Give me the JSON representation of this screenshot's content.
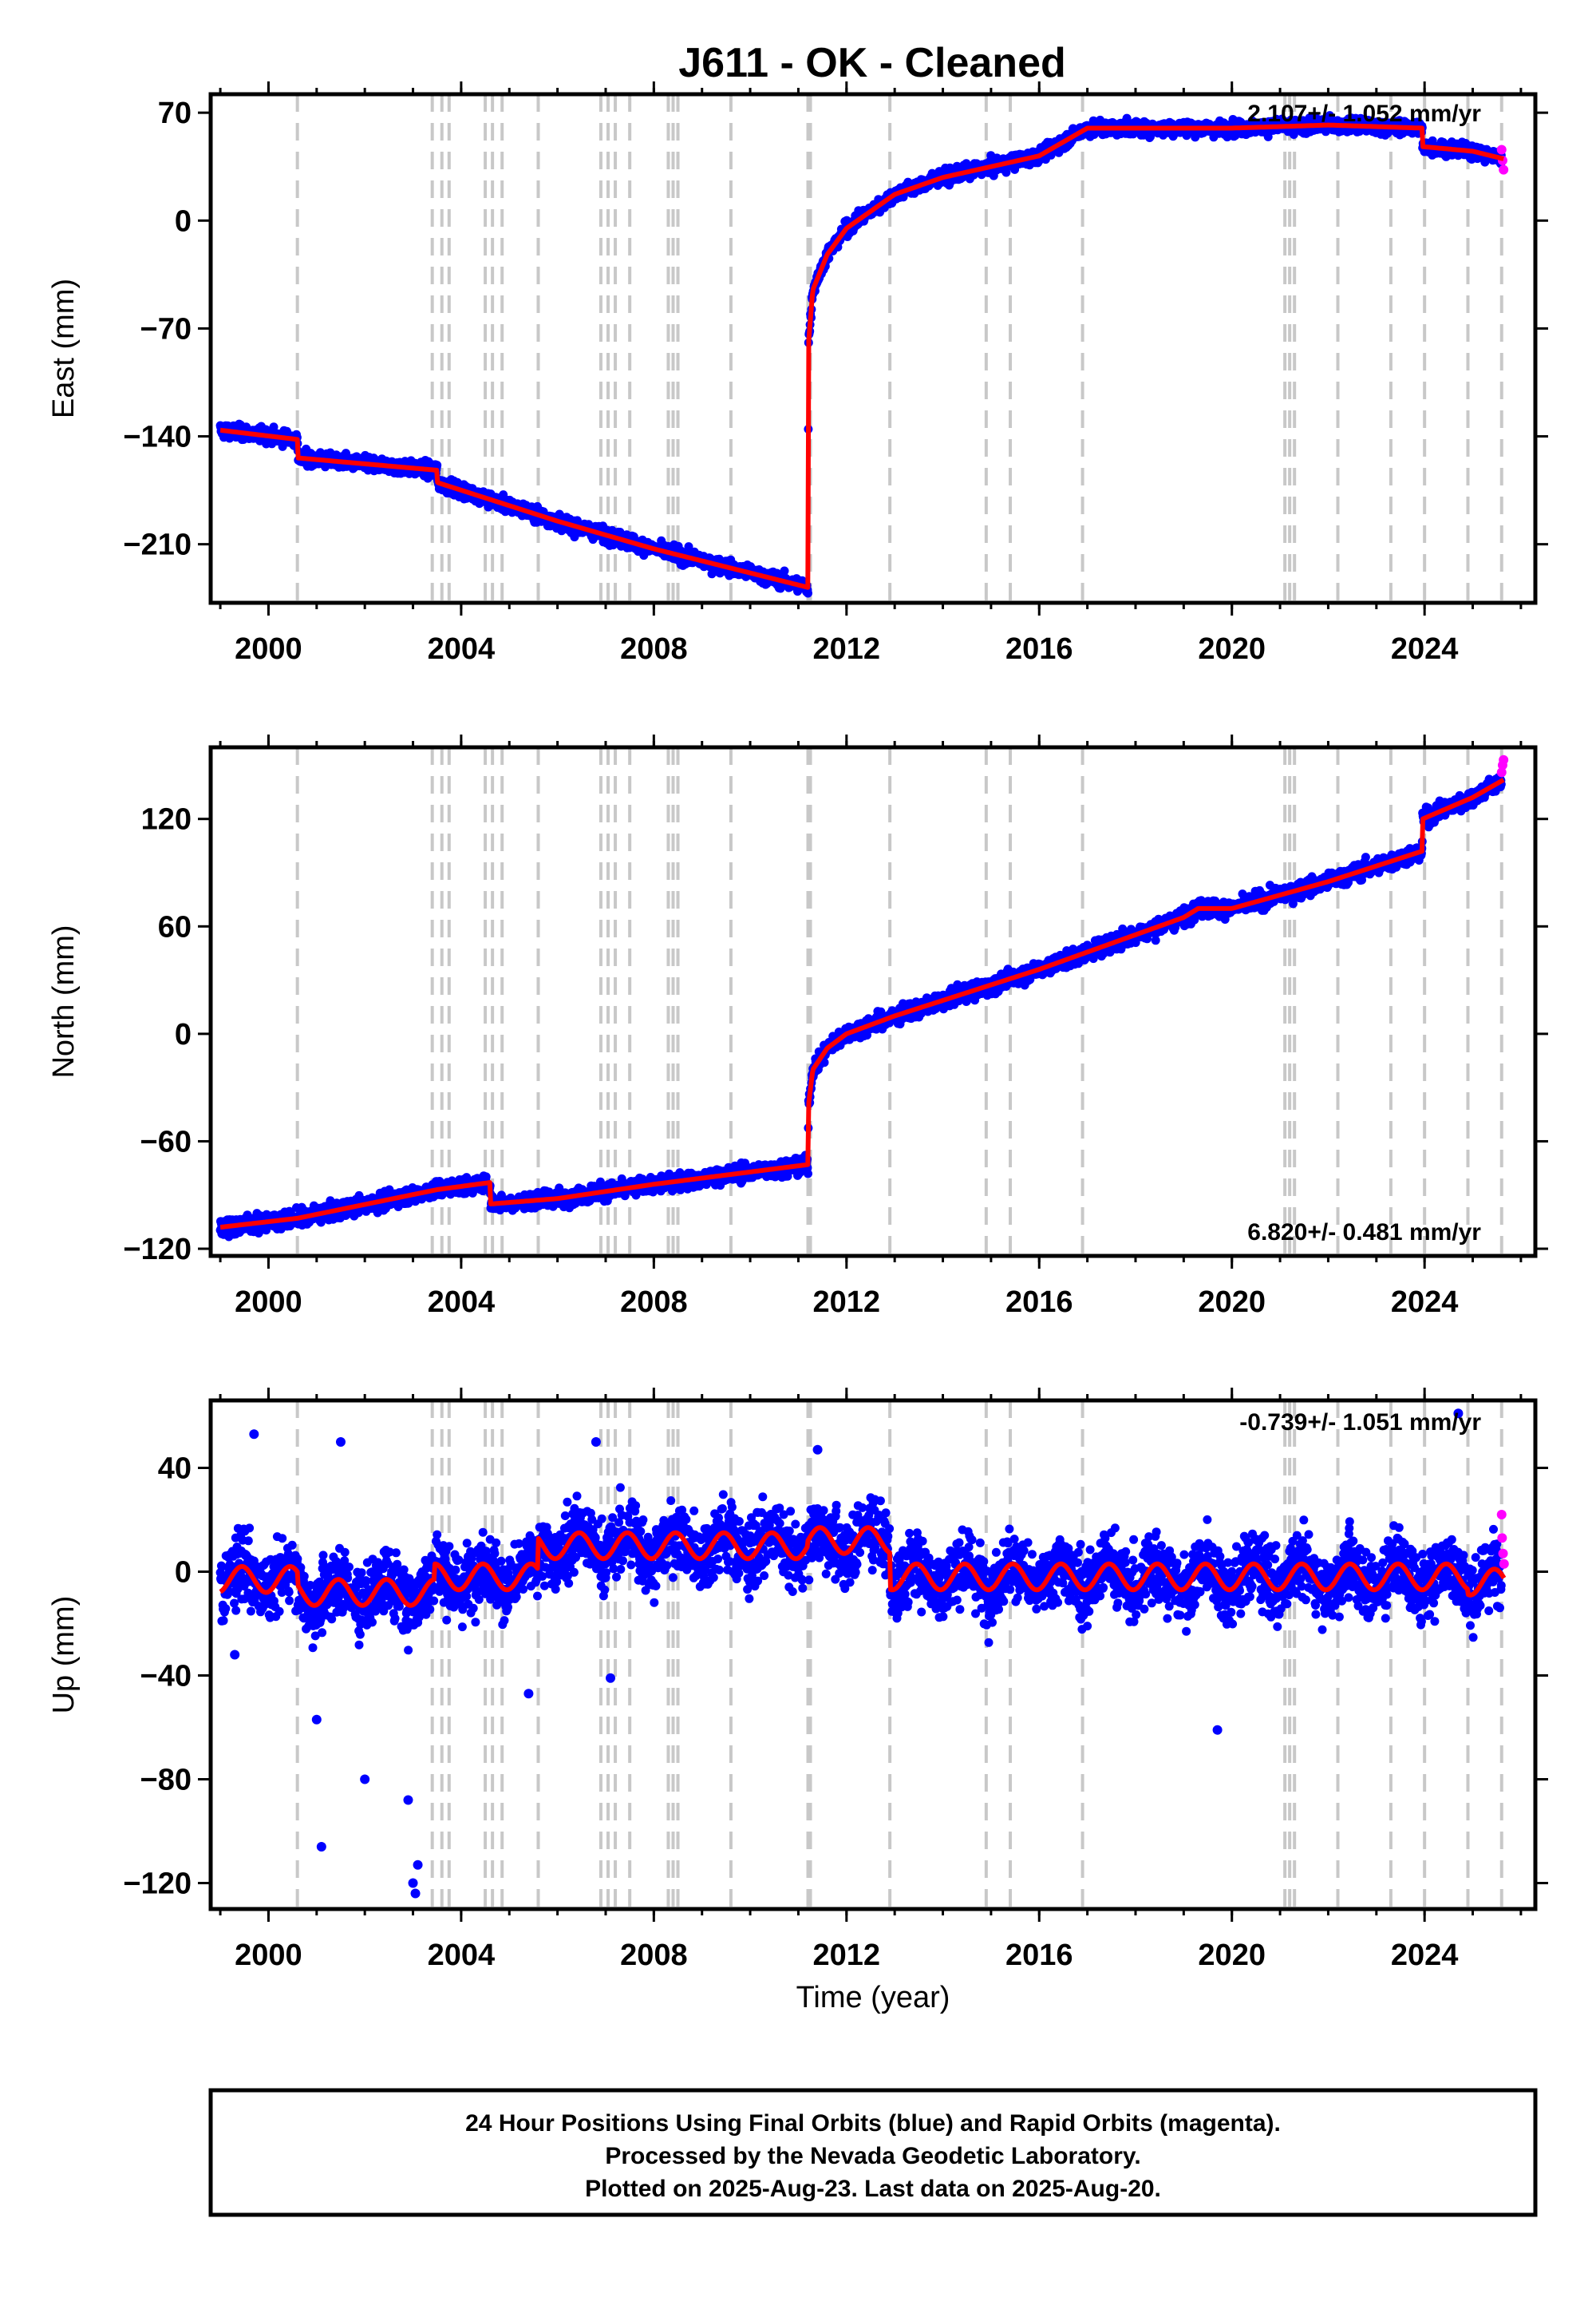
{
  "title": "J611  - OK - Cleaned",
  "colors": {
    "final": "#0000ff",
    "rapid": "#ff00ff",
    "model": "#ff0000",
    "breaks": "#c8c8c8"
  },
  "chart_data": [
    {
      "type": "scatter",
      "component": "East",
      "ylabel": "East (mm)",
      "xlim": [
        1998.8,
        2026.3
      ],
      "ylim": [
        -248,
        82
      ],
      "yticks": [
        70,
        0,
        -70,
        -140,
        -210
      ],
      "xticks": [
        2000,
        2004,
        2008,
        2012,
        2016,
        2020,
        2024
      ],
      "rate_label": "2.107+/- 1.052 mm/yr",
      "model": {
        "x": [
          1999.0,
          2000.6,
          2000.61,
          2003.5,
          2003.51,
          2006.0,
          2008.0,
          2011.2,
          2011.21,
          2011.3,
          2011.6,
          2012.0,
          2013.0,
          2014.0,
          2016.0,
          2017.0,
          2018.0,
          2020.0,
          2022.0,
          2023.95,
          2023.96,
          2025.0,
          2025.65
        ],
        "y": [
          -136,
          -142,
          -154,
          -162,
          -170,
          -195,
          -213,
          -238,
          -80,
          -45,
          -22,
          -5,
          17,
          28,
          42,
          60,
          60,
          60,
          62,
          60,
          48,
          45,
          40
        ]
      },
      "rapid": {
        "x": [
          2025.6,
          2025.62,
          2025.64
        ],
        "y": [
          46,
          39,
          33
        ]
      }
    },
    {
      "type": "scatter",
      "component": "North",
      "ylabel": "North (mm)",
      "xlim": [
        1998.8,
        2026.3
      ],
      "ylim": [
        -124,
        160
      ],
      "yticks": [
        120,
        60,
        0,
        -60,
        -120
      ],
      "xticks": [
        2000,
        2004,
        2008,
        2012,
        2016,
        2020,
        2024
      ],
      "rate_label": "6.820+/- 0.481 mm/yr",
      "model": {
        "x": [
          1999.0,
          2000.6,
          2003.5,
          2004.6,
          2004.61,
          2006.0,
          2008.0,
          2011.2,
          2011.21,
          2011.3,
          2011.6,
          2012.0,
          2013.0,
          2016.0,
          2019.0,
          2019.3,
          2020.0,
          2022.0,
          2023.95,
          2023.96,
          2025.0,
          2025.65
        ],
        "y": [
          -108,
          -103,
          -87,
          -83,
          -95,
          -92,
          -84,
          -73,
          -40,
          -20,
          -8,
          0,
          10,
          36,
          65,
          70,
          70,
          85,
          102,
          120,
          132,
          142
        ]
      },
      "rapid": {
        "x": [
          2025.6,
          2025.62,
          2025.64
        ],
        "y": [
          146,
          150,
          153
        ]
      }
    },
    {
      "type": "scatter",
      "component": "Up",
      "ylabel": "Up (mm)",
      "xlabel": "Time (year)",
      "xlim": [
        1998.8,
        2026.3
      ],
      "ylim": [
        -130,
        66
      ],
      "yticks": [
        40,
        0,
        -40,
        -80,
        -120
      ],
      "xticks": [
        2000,
        2004,
        2008,
        2012,
        2016,
        2020,
        2024
      ],
      "rate_label": "-0.739+/- 1.051 mm/yr",
      "model_offsets": [
        {
          "start": 1999.0,
          "end": 2000.6,
          "level": -3
        },
        {
          "start": 2000.6,
          "end": 2003.45,
          "level": -8
        },
        {
          "start": 2003.45,
          "end": 2005.6,
          "level": -2
        },
        {
          "start": 2005.6,
          "end": 2011.2,
          "level": 10
        },
        {
          "start": 2011.2,
          "end": 2012.9,
          "level": 12
        },
        {
          "start": 2012.9,
          "end": 2024.9,
          "level": -2
        },
        {
          "start": 2024.9,
          "end": 2025.65,
          "level": -4
        }
      ],
      "seasonal_amplitude": 5,
      "outliers": {
        "x": [
          1999.3,
          1999.7,
          2001.0,
          2001.1,
          2001.5,
          2002.0,
          2002.9,
          2003.0,
          2003.05,
          2003.1,
          2005.4,
          2006.8,
          2007.1,
          2011.4,
          2019.7,
          2024.7
        ],
        "y": [
          -32,
          53,
          -57,
          -106,
          50,
          -80,
          -88,
          -120,
          -124,
          -113,
          -47,
          50,
          -41,
          47,
          -61,
          61
        ]
      },
      "rapid": {
        "x": [
          2025.6,
          2025.61,
          2025.63,
          2025.65
        ],
        "y": [
          22,
          13,
          7,
          3
        ]
      }
    }
  ],
  "breaks": [
    2000.6,
    2003.4,
    2003.6,
    2003.75,
    2004.5,
    2004.65,
    2004.85,
    2005.6,
    2006.9,
    2007.05,
    2007.2,
    2007.5,
    2008.3,
    2008.4,
    2008.5,
    2009.6,
    2011.2,
    2011.25,
    2012.9,
    2014.9,
    2015.4,
    2016.9,
    2021.1,
    2021.2,
    2021.3,
    2022.2,
    2023.3,
    2024.0,
    2024.9,
    2025.6
  ],
  "footer": {
    "line1": "24 Hour Positions Using Final Orbits (blue) and Rapid Orbits (magenta).",
    "line2": "Processed by the Nevada Geodetic Laboratory.",
    "line3": "Plotted on 2025-Aug-23. Last data on 2025-Aug-20."
  }
}
